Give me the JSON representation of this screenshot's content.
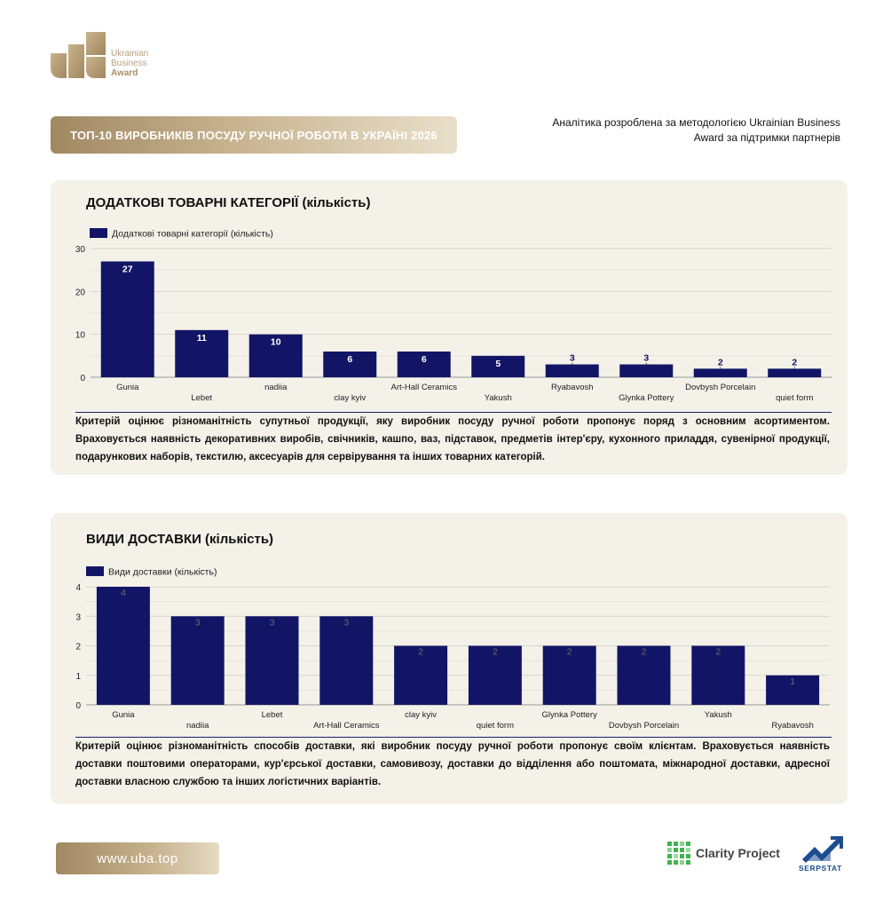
{
  "header": {
    "logo_lines": [
      "Ukrainian",
      "Business",
      "Award"
    ],
    "title": "ТОП-10 ВИРОБНИКІВ ПОСУДУ РУЧНОЇ РОБОТИ В УКРАЇНІ 2026",
    "note": "Аналітика розроблена за методологією Ukrainian Business Award за підтримки партнерів"
  },
  "footer": {
    "url": "www.uba.top",
    "partner1": "Clarity Project",
    "partner2": "SERPSTAT"
  },
  "colors": {
    "bar": "#121566",
    "grid": "#d9d6cc",
    "gold": "#b49f7b"
  },
  "chart_data": [
    {
      "type": "bar",
      "title": "ДОДАТКОВІ ТОВАРНІ КАТЕГОРІЇ (кількість)",
      "legend": "Додаткові товарні категорії (кількість)",
      "legend_position": "top-left",
      "categories": [
        "Gunia",
        "Lebet",
        "nadiia",
        "clay kyiv",
        "Art-Hall Ceramics",
        "Yakush",
        "Ryabavosh",
        "Glynka Pottery",
        "Dovbysh Porcelain",
        "quiet form"
      ],
      "values": [
        27,
        11,
        10,
        6,
        6,
        5,
        3,
        3,
        2,
        2
      ],
      "yticks": [
        0,
        10,
        20,
        30
      ],
      "ylim": [
        0,
        30
      ],
      "grid": true,
      "description": "Критерій оцінює різноманітність супутньої продукції, яку виробник посуду ручної роботи пропонує поряд з основним асортиментом. Враховується наявність декоративних виробів, свічників, кашпо, ваз, підставок, предметів інтер'єру, кухонного приладдя, сувенірної продукції, подарункових наборів, текстилю, аксесуарів для сервірування та інших товарних категорій."
    },
    {
      "type": "bar",
      "title": "ВИДИ ДОСТАВКИ (кількість)",
      "legend": "Види доставки (кількість)",
      "legend_position": "top-left",
      "categories": [
        "Gunia",
        "nadiia",
        "Lebet",
        "Art-Hall Ceramics",
        "clay kyiv",
        "quiet form",
        "Glynka Pottery",
        "Dovbysh Porcelain",
        "Yakush",
        "Ryabavosh"
      ],
      "values": [
        4,
        3,
        3,
        3,
        2,
        2,
        2,
        2,
        2,
        1
      ],
      "yticks": [
        0,
        1,
        2,
        3,
        4
      ],
      "ylim": [
        0,
        4
      ],
      "grid": true,
      "description": "Критерій оцінює різноманітність способів доставки, які виробник посуду ручної роботи пропонує своїм клієнтам. Враховується наявність доставки поштовими операторами, кур'єрської доставки, самовивозу, доставки до відділення або поштомата, міжнародної доставки, адресної доставки власною службою та інших логістичних варіантів."
    }
  ]
}
